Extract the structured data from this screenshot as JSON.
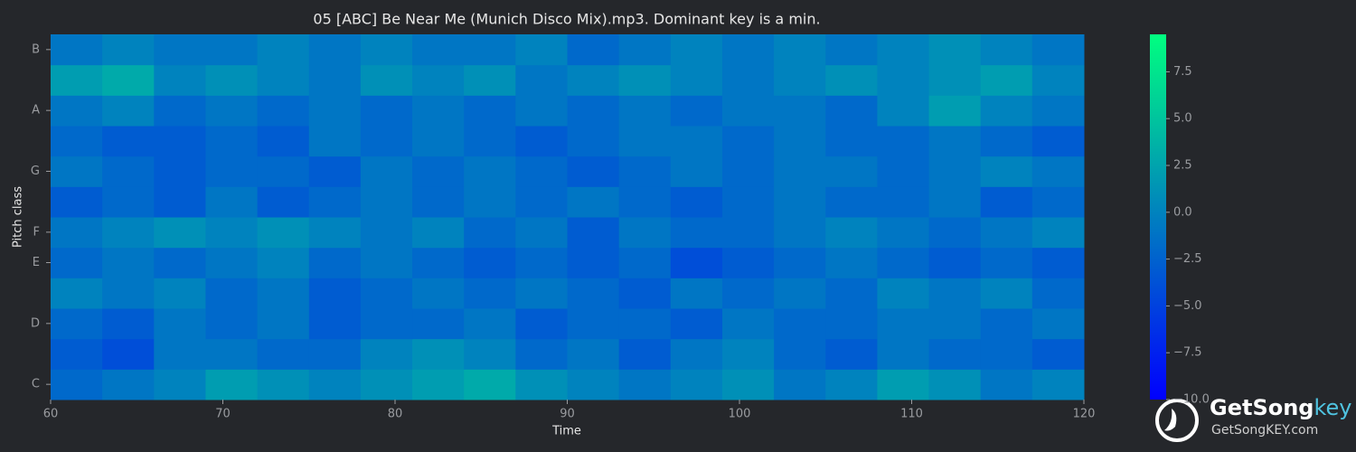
{
  "chart_data": {
    "type": "heatmap",
    "title": "05 [ABC] Be Near Me (Munich Disco Mix).mp3. Dominant key is a min.",
    "xlabel": "Time",
    "ylabel": "Pitch class",
    "x": [
      60,
      63,
      66,
      69,
      72,
      75,
      78,
      81,
      84,
      87,
      90,
      93,
      96,
      99,
      102,
      105,
      108,
      111,
      114,
      117,
      120
    ],
    "xlim": [
      60,
      120
    ],
    "xticks": [
      60,
      70,
      80,
      90,
      100,
      110,
      120
    ],
    "categories": [
      "C",
      null,
      "D",
      null,
      "E",
      "F",
      null,
      "G",
      null,
      "A",
      null,
      "B"
    ],
    "values": [
      [
        -2,
        -1,
        0,
        2,
        1,
        0,
        1,
        2,
        3,
        1,
        0,
        -1,
        0,
        1,
        -1,
        0,
        2,
        1,
        -1,
        0
      ],
      [
        -3,
        -4,
        -1,
        -1,
        -2,
        -2,
        0,
        1,
        0,
        -2,
        -1,
        -3,
        -1,
        0,
        -2,
        -3,
        -1,
        -2,
        -2,
        -3
      ],
      [
        -2,
        -3,
        -1,
        -2,
        -1,
        -3,
        -2,
        -2,
        -1,
        -3,
        -2,
        -2,
        -3,
        -1,
        -2,
        -2,
        -1,
        -1,
        -2,
        -1
      ],
      [
        0,
        -1,
        0,
        -2,
        -1,
        -3,
        -2,
        -1,
        -2,
        -1,
        -2,
        -3,
        -1,
        -2,
        -1,
        -2,
        0,
        -1,
        0,
        -2
      ],
      [
        -2,
        -1,
        -2,
        -1,
        0,
        -2,
        -1,
        -2,
        -3,
        -2,
        -3,
        -2,
        -4,
        -3,
        -2,
        -1,
        -2,
        -3,
        -2,
        -3
      ],
      [
        -1,
        0,
        1,
        0,
        1,
        0,
        -1,
        0,
        -2,
        -1,
        -3,
        -1,
        -2,
        -2,
        -1,
        0,
        -1,
        -2,
        -1,
        0
      ],
      [
        -3,
        -2,
        -3,
        -1,
        -3,
        -2,
        -1,
        -2,
        -1,
        -2,
        -1,
        -2,
        -3,
        -2,
        -1,
        -2,
        -2,
        -1,
        -3,
        -2
      ],
      [
        -1,
        -2,
        -3,
        -2,
        -2,
        -3,
        -1,
        -2,
        -1,
        -2,
        -3,
        -2,
        -1,
        -2,
        -1,
        -1,
        -2,
        -1,
        0,
        -1
      ],
      [
        -2,
        -3,
        -3,
        -2,
        -3,
        -1,
        -2,
        -1,
        -2,
        -3,
        -2,
        -1,
        -1,
        -2,
        -1,
        -2,
        -2,
        -1,
        -2,
        -3
      ],
      [
        -1,
        0,
        -2,
        -1,
        -2,
        -1,
        -2,
        -1,
        -2,
        -1,
        -2,
        -1,
        -2,
        -1,
        -1,
        -2,
        0,
        2,
        0,
        -1
      ],
      [
        2,
        3,
        0,
        1,
        0,
        -1,
        1,
        0,
        1,
        -1,
        0,
        1,
        0,
        -1,
        0,
        1,
        0,
        1,
        2,
        0
      ],
      [
        -1,
        0,
        -1,
        -1,
        0,
        -1,
        0,
        -1,
        -1,
        0,
        -2,
        -1,
        0,
        -1,
        0,
        -1,
        0,
        1,
        0,
        -1
      ]
    ],
    "colorscale": [
      "#0000ff",
      "#00ff80"
    ],
    "clim": [
      -10,
      9.5
    ],
    "cticks": [
      {
        "value": -10,
        "label": "−10.0"
      },
      {
        "value": -7.5,
        "label": "−7.5"
      },
      {
        "value": -5,
        "label": "−5.0"
      },
      {
        "value": -2.5,
        "label": "−2.5"
      },
      {
        "value": 0,
        "label": "0.0"
      },
      2.5,
      {
        "value": 5,
        "label": "5.0"
      },
      7.5
    ]
  },
  "watermark": {
    "name": "GetSong",
    "accent": "key",
    "url": "GetSongKEY.com"
  }
}
